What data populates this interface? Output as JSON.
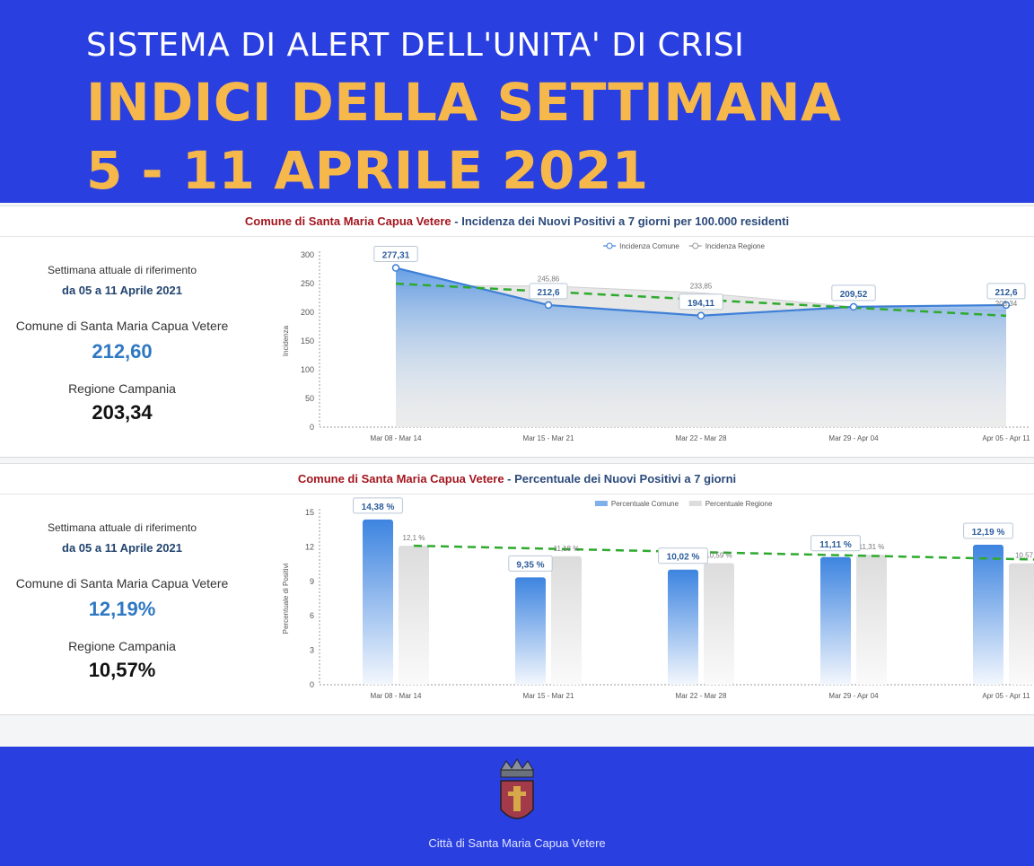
{
  "header": {
    "subtitle": "SISTEMA DI ALERT DELL'UNITA' DI CRISI",
    "title_line1": "INDICI DELLA SETTIMANA",
    "title_line2": "5 - 11 APRILE 2021"
  },
  "panels": [
    {
      "title_red": "Comune di Santa Maria Capua Vetere",
      "title_blue": " - Incidenza dei Nuovi Positivi a 7 giorni per 100.000 residenti",
      "stats": {
        "label": "Settimana attuale di riferimento",
        "period": "da 05 a 11 Aprile 2021",
        "comune_label": "Comune di Santa Maria Capua Vetere",
        "comune_value": "212,60",
        "regione_label": "Regione Campania",
        "regione_value": "203,34"
      }
    },
    {
      "title_red": "Comune di Santa Maria Capua Vetere",
      "title_blue": " - Percentuale dei Nuovi Positivi a 7 giorni",
      "stats": {
        "label": "Settimana attuale di riferimento",
        "period": "da 05 a 11 Aprile 2021",
        "comune_label": "Comune di Santa Maria Capua Vetere",
        "comune_value": "12,19%",
        "regione_label": "Regione Campania",
        "regione_value": "10,57%"
      }
    }
  ],
  "chart_data": [
    {
      "type": "area",
      "categories": [
        "Mar 08 - Mar 14",
        "Mar 15 - Mar 21",
        "Mar 22 - Mar 28",
        "Mar 29 - Apr 04",
        "Apr 05 - Apr 11"
      ],
      "series": [
        {
          "name": "Incidenza Comune",
          "values": [
            277.31,
            212.6,
            194.11,
            209.52,
            212.6
          ],
          "labels": [
            "277,31",
            "212,6",
            "194,11",
            "209,52",
            "212,6"
          ]
        },
        {
          "name": "Incidenza Regione",
          "values": [
            245.86,
            245.86,
            233.85,
            209.52,
            203.34
          ],
          "labels": [
            "",
            "245,86",
            "233,85",
            "",
            "203,34"
          ]
        }
      ],
      "trendline": [
        250,
        194
      ],
      "ylabel": "Incidenza",
      "yticks": [
        0,
        50,
        100,
        150,
        200,
        250,
        300
      ],
      "ylim": [
        0,
        300
      ],
      "legend": "top-center",
      "colors": {
        "comune": "#3d7fd6",
        "regione": "#bdbdbd",
        "trend": "#2eaa2e"
      }
    },
    {
      "type": "bar",
      "categories": [
        "Mar 08 - Mar 14",
        "Mar 15 - Mar 21",
        "Mar 22 - Mar 28",
        "Mar 29 - Apr 04",
        "Apr 05 - Apr 11"
      ],
      "series": [
        {
          "name": "Percentuale Comune",
          "values": [
            14.38,
            9.35,
            10.02,
            11.11,
            12.19
          ],
          "labels": [
            "14,38 %",
            "9,35 %",
            "10,02 %",
            "11,11 %",
            "12,19 %"
          ]
        },
        {
          "name": "Percentuale Regione",
          "values": [
            12.1,
            11.18,
            10.59,
            11.31,
            10.57
          ],
          "labels": [
            "12,1 %",
            "11,18 %",
            "10,59 %",
            "11,31 %",
            "10,57"
          ]
        }
      ],
      "trendline": [
        12.1,
        10.9
      ],
      "ylabel": "Percentuale di Positivi",
      "yticks": [
        0,
        3,
        6,
        9,
        12,
        15
      ],
      "ylim": [
        0,
        15
      ],
      "legend": "top-center",
      "colors": {
        "comune": "#3d7fd6",
        "regione": "#d9d9d9",
        "trend": "#2eaa2e"
      }
    }
  ],
  "footer": {
    "city": "Città di Santa Maria Capua Vetere"
  }
}
